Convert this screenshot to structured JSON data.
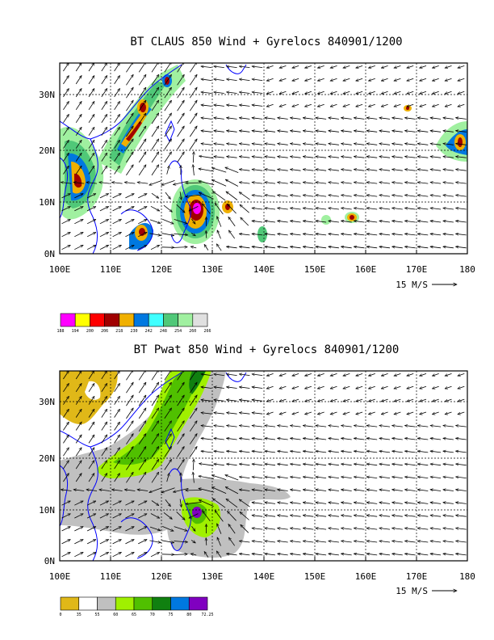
{
  "panels": [
    {
      "title": "BT CLAUS 850 Wind + Gyrelocs 840901/1200",
      "x_ticks": [
        "100E",
        "110E",
        "120E",
        "130E",
        "140E",
        "150E",
        "160E",
        "170E",
        "180"
      ],
      "y_ticks": [
        "0N",
        "10N",
        "20N",
        "30N"
      ],
      "vector_key": "15 M/S",
      "legend": {
        "labels": [
          "188",
          "194",
          "200",
          "206",
          "218",
          "230",
          "242",
          "248",
          "254",
          "260",
          "266"
        ],
        "colors": [
          "#ff00ff",
          "#ffff00",
          "#ff0000",
          "#a00000",
          "#f0b000",
          "#0078e0",
          "#40ffff",
          "#50c878",
          "#a0f0a0",
          "#e0e0e0"
        ]
      }
    },
    {
      "title": "BT Pwat 850 Wind + Gyrelocs 840901/1200",
      "x_ticks": [
        "100E",
        "110E",
        "120E",
        "130E",
        "140E",
        "150E",
        "160E",
        "170E",
        "180"
      ],
      "y_ticks": [
        "0N",
        "10N",
        "20N",
        "30N"
      ],
      "vector_key": "15 M/S",
      "legend": {
        "labels": [
          "0",
          "35",
          "55",
          "60",
          "65",
          "70",
          "75",
          "80",
          "72.25"
        ],
        "colors": [
          "#e0b818",
          "#ffffff",
          "#c0c0c0",
          "#a0f000",
          "#50c000",
          "#108010",
          "#0078e0",
          "#8000c0"
        ]
      }
    }
  ],
  "map": {
    "lon_range": [
      100,
      180
    ],
    "lat_range": [
      0,
      37
    ],
    "coastline_color": "#0000ff",
    "grid_style": "dotted"
  }
}
